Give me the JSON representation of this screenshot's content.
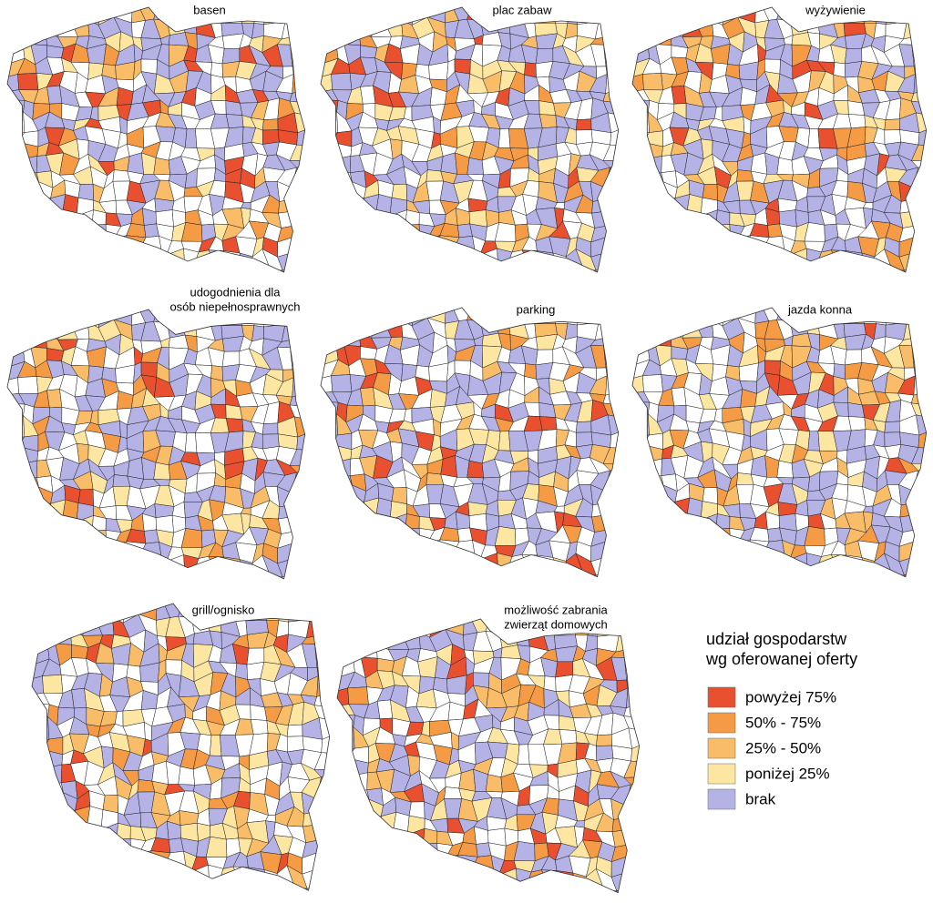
{
  "maps": [
    {
      "title": [
        "basen"
      ]
    },
    {
      "title": [
        "plac zabaw"
      ]
    },
    {
      "title": [
        "wyżywienie"
      ]
    },
    {
      "title": [
        "udogodnienia dla",
        "osób niepełnosprawnych"
      ]
    },
    {
      "title": [
        "parking"
      ]
    },
    {
      "title": [
        "jazda konna"
      ]
    },
    {
      "title": [
        "grill/ognisko"
      ]
    },
    {
      "title": [
        "możliwość zabrania",
        "zwierząt domowych"
      ]
    }
  ],
  "legend": {
    "title": [
      "udział gospodarstw",
      "wg oferowanej oferty"
    ],
    "items": [
      {
        "label": "powyżej 75%",
        "color": "#e8502f"
      },
      {
        "label": "50% - 75%",
        "color": "#f59a45"
      },
      {
        "label": "25% - 50%",
        "color": "#f9bd6a"
      },
      {
        "label": "poniżej 25%",
        "color": "#fde6a2"
      },
      {
        "label": "brak",
        "color": "#b5b2e6"
      }
    ]
  }
}
